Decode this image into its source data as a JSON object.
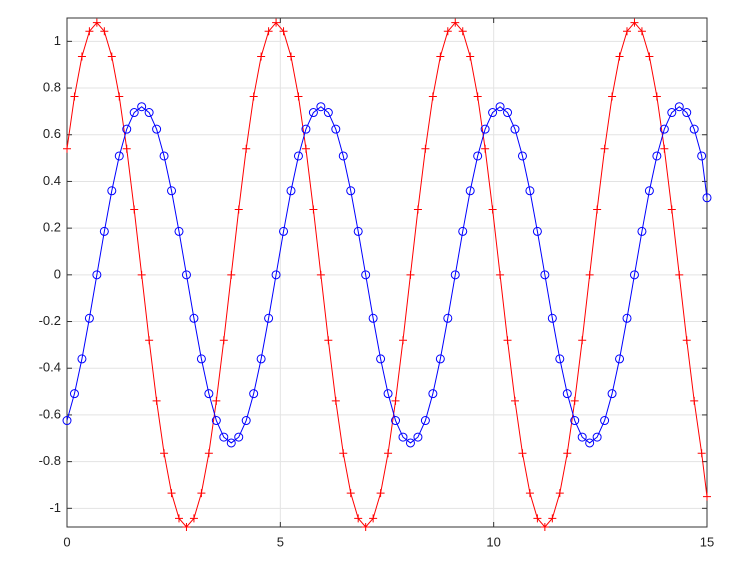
{
  "chart_data": {
    "type": "line",
    "x": [
      0,
      0.175,
      0.35,
      0.525,
      0.7,
      0.875,
      1.05,
      1.225,
      1.4,
      1.575,
      1.75,
      1.925,
      2.1,
      2.275,
      2.45,
      2.625,
      2.8,
      2.975,
      3.15,
      3.325,
      3.5,
      3.675,
      3.85,
      4.025,
      4.2,
      4.375,
      4.55,
      4.725,
      4.9,
      5.075,
      5.25,
      5.425,
      5.6,
      5.775,
      5.95,
      6.125,
      6.3,
      6.475,
      6.65,
      6.825,
      7,
      7.175,
      7.35,
      7.525,
      7.7,
      7.875,
      8.05,
      8.225,
      8.4,
      8.575,
      8.75,
      8.925,
      9.1,
      9.275,
      9.45,
      9.625,
      9.8,
      9.975,
      10.15,
      10.325,
      10.5,
      10.675,
      10.85,
      11.025,
      11.2,
      11.375,
      11.55,
      11.725,
      11.9,
      12.075,
      12.25,
      12.425,
      12.6,
      12.775,
      12.95,
      13.125,
      13.3,
      13.475,
      13.65,
      13.825,
      14,
      14.175,
      14.35,
      14.525,
      14.7,
      14.875,
      15
    ],
    "series": [
      {
        "color": "#ff0000",
        "marker": "plus",
        "values": [
          0.54,
          0.764,
          0.935,
          1.043,
          1.08,
          1.043,
          0.935,
          0.764,
          0.54,
          0.28,
          0,
          -0.28,
          -0.54,
          -0.764,
          -0.935,
          -1.043,
          -1.08,
          -1.043,
          -0.935,
          -0.764,
          -0.54,
          -0.28,
          0,
          0.28,
          0.54,
          0.764,
          0.935,
          1.043,
          1.08,
          1.043,
          0.935,
          0.764,
          0.54,
          0.28,
          0,
          -0.28,
          -0.54,
          -0.764,
          -0.935,
          -1.043,
          -1.08,
          -1.043,
          -0.935,
          -0.764,
          -0.54,
          -0.28,
          0,
          0.28,
          0.54,
          0.764,
          0.935,
          1.043,
          1.08,
          1.043,
          0.935,
          0.764,
          0.54,
          0.28,
          0,
          -0.28,
          -0.54,
          -0.764,
          -0.935,
          -1.043,
          -1.08,
          -1.043,
          -0.935,
          -0.764,
          -0.54,
          -0.28,
          0,
          0.28,
          0.54,
          0.764,
          0.935,
          1.043,
          1.08,
          1.043,
          0.935,
          0.764,
          0.54,
          0.28,
          0,
          -0.28,
          -0.54,
          -0.764,
          -0.95
        ]
      },
      {
        "color": "#0000ff",
        "marker": "circle",
        "values": [
          -0.624,
          -0.509,
          -0.36,
          -0.186,
          0,
          0.186,
          0.36,
          0.509,
          0.624,
          0.695,
          0.72,
          0.695,
          0.624,
          0.509,
          0.36,
          0.186,
          0,
          -0.186,
          -0.36,
          -0.509,
          -0.624,
          -0.695,
          -0.72,
          -0.695,
          -0.624,
          -0.509,
          -0.36,
          -0.186,
          0,
          0.186,
          0.36,
          0.509,
          0.624,
          0.695,
          0.72,
          0.695,
          0.624,
          0.509,
          0.36,
          0.186,
          0,
          -0.186,
          -0.36,
          -0.509,
          -0.624,
          -0.695,
          -0.72,
          -0.695,
          -0.624,
          -0.509,
          -0.36,
          -0.186,
          0,
          0.186,
          0.36,
          0.509,
          0.624,
          0.695,
          0.72,
          0.695,
          0.624,
          0.509,
          0.36,
          0.186,
          0,
          -0.186,
          -0.36,
          -0.509,
          -0.624,
          -0.695,
          -0.72,
          -0.695,
          -0.624,
          -0.509,
          -0.36,
          -0.186,
          0,
          0.186,
          0.36,
          0.509,
          0.624,
          0.695,
          0.72,
          0.695,
          0.624,
          0.509,
          0.33
        ]
      }
    ],
    "xlim": [
      0,
      15
    ],
    "xticks": [
      0,
      5,
      10,
      15
    ],
    "ylim": [
      -1.08,
      1.1
    ],
    "yticks": [
      -1,
      -0.8,
      -0.6,
      -0.4,
      -0.2,
      0,
      0.2,
      0.4,
      0.6,
      0.8,
      1
    ],
    "grid": true
  }
}
